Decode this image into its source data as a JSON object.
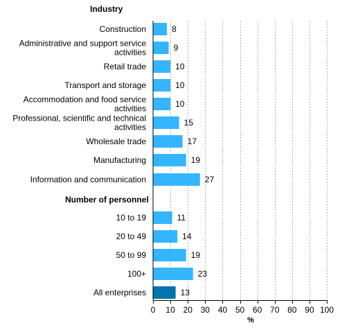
{
  "chart_data": {
    "type": "bar",
    "orientation": "horizontal",
    "xlabel": "%",
    "xlim": [
      0,
      100
    ],
    "xticks": [
      0,
      10,
      20,
      30,
      40,
      50,
      60,
      70,
      80,
      90,
      100
    ],
    "grid": true,
    "groups": [
      {
        "title": "Industry",
        "items": [
          {
            "label": [
              "Construction"
            ],
            "value": 8
          },
          {
            "label": [
              "Administrative and support service",
              "activities"
            ],
            "value": 9
          },
          {
            "label": [
              "Retail trade"
            ],
            "value": 10
          },
          {
            "label": [
              "Transport and storage"
            ],
            "value": 10
          },
          {
            "label": [
              "Accommodation and food service",
              "activities"
            ],
            "value": 10
          },
          {
            "label": [
              "Professional, scientific and technical",
              "activities"
            ],
            "value": 15
          },
          {
            "label": [
              "Wholesale trade"
            ],
            "value": 17
          },
          {
            "label": [
              "Manufacturing"
            ],
            "value": 19
          },
          {
            "label": [
              "Information and communication"
            ],
            "value": 27
          }
        ]
      },
      {
        "title": "Number of personnel",
        "items": [
          {
            "label": [
              "10 to 19"
            ],
            "value": 11
          },
          {
            "label": [
              "20 to 49"
            ],
            "value": 14
          },
          {
            "label": [
              "50 to 99"
            ],
            "value": 19
          },
          {
            "label": [
              "100+"
            ],
            "value": 23
          },
          {
            "label": [
              "All enterprises"
            ],
            "value": 13,
            "highlight": true
          }
        ]
      }
    ],
    "colors": {
      "bar": "#33b5ff",
      "highlight": "#0073b0",
      "grid": "#b0b0b0",
      "axis": "#000000"
    }
  }
}
